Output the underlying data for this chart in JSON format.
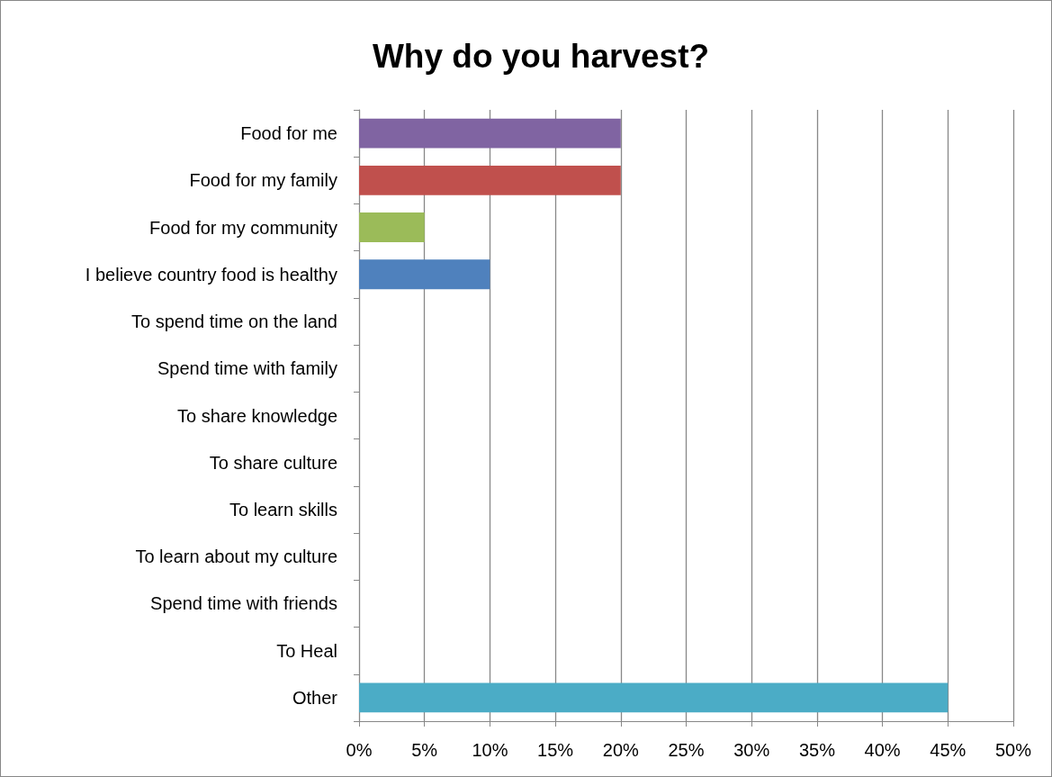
{
  "chart_data": {
    "type": "bar",
    "title": "Why do you harvest?",
    "orientation": "horizontal",
    "categories": [
      "Food for me",
      "Food for my family",
      "Food for my community",
      "I believe country food is healthy",
      "To spend time on the land",
      "Spend time with family",
      "To share knowledge",
      "To share culture",
      "To learn skills",
      "To learn about my culture",
      "Spend time with friends",
      "To Heal",
      "Other"
    ],
    "values": [
      20,
      20,
      5,
      10,
      0,
      0,
      0,
      0,
      0,
      0,
      0,
      0,
      45
    ],
    "colors": [
      "#8064a2",
      "#c0504d",
      "#9bbb59",
      "#4f81bd",
      null,
      null,
      null,
      null,
      null,
      null,
      null,
      null,
      "#4bacc6"
    ],
    "xlim": [
      0,
      50
    ],
    "xticks": [
      {
        "value": 0,
        "label": "0%"
      },
      {
        "value": 5,
        "label": "5%"
      },
      {
        "value": 10,
        "label": "10%"
      },
      {
        "value": 15,
        "label": "15%"
      },
      {
        "value": 20,
        "label": "20%"
      },
      {
        "value": 25,
        "label": "25%"
      },
      {
        "value": 30,
        "label": "30%"
      },
      {
        "value": 35,
        "label": "35%"
      },
      {
        "value": 40,
        "label": "40%"
      },
      {
        "value": 45,
        "label": "45%"
      },
      {
        "value": 50,
        "label": "50%"
      }
    ],
    "grid": "x"
  }
}
